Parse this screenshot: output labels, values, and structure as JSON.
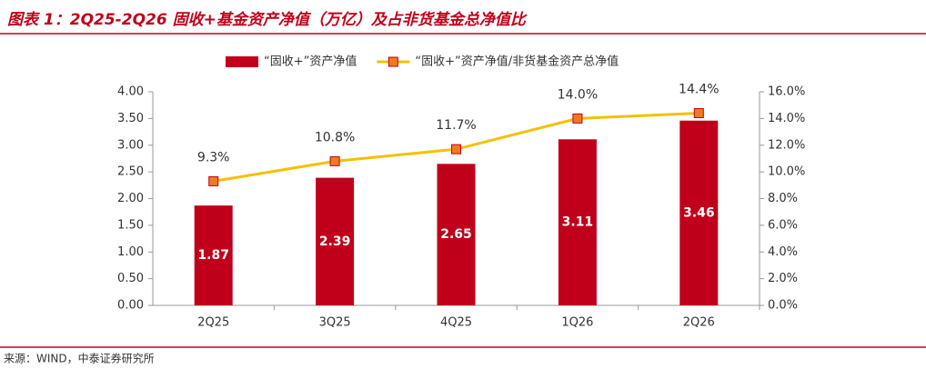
{
  "chart_data": {
    "type": "bar-line",
    "title": "图表 1：2Q25-2Q26 固收+基金资产净值（万亿）及占非货基金总净值比",
    "source": "来源：WIND，中泰证券研究所",
    "categories": [
      "2Q25",
      "3Q25",
      "4Q25",
      "1Q26",
      "2Q26"
    ],
    "series": [
      {
        "name": "“固收+”资产净值",
        "type": "bar",
        "color": "#c0001a",
        "values": [
          1.87,
          2.39,
          2.65,
          3.11,
          3.46
        ]
      },
      {
        "name": "“固收+”资产净值/非货基金资产总净值",
        "type": "line",
        "axis": "y2",
        "color": "#f5c000",
        "marker_color": "#f07a20",
        "values": [
          9.3,
          10.8,
          11.7,
          14.0,
          14.4
        ],
        "value_labels": [
          "9.3%",
          "10.8%",
          "11.7%",
          "14.0%",
          "14.4%"
        ]
      }
    ],
    "ylim": [
      0,
      4
    ],
    "yticks": [
      {
        "value": 0,
        "label": "0.00"
      },
      {
        "value": 0.5,
        "label": "0.50"
      },
      {
        "value": 1,
        "label": "1.00"
      },
      {
        "value": 1.5,
        "label": "1.50"
      },
      {
        "value": 2,
        "label": "2.00"
      },
      {
        "value": 2.5,
        "label": "2.50"
      },
      {
        "value": 3,
        "label": "3.00"
      },
      {
        "value": 3.5,
        "label": "3.50"
      },
      {
        "value": 4,
        "label": "4.00"
      }
    ],
    "y2lim": [
      0,
      16
    ],
    "y2ticks": [
      {
        "value": 0,
        "label": "0.0%"
      },
      {
        "value": 2,
        "label": "2.0%"
      },
      {
        "value": 4,
        "label": "4.0%"
      },
      {
        "value": 6,
        "label": "6.0%"
      },
      {
        "value": 8,
        "label": "8.0%"
      },
      {
        "value": 10,
        "label": "10.0%"
      },
      {
        "value": 12,
        "label": "12.0%"
      },
      {
        "value": 14,
        "label": "14.0%"
      },
      {
        "value": 16,
        "label": "16.0%"
      }
    ],
    "grid": false,
    "legend": "top"
  }
}
